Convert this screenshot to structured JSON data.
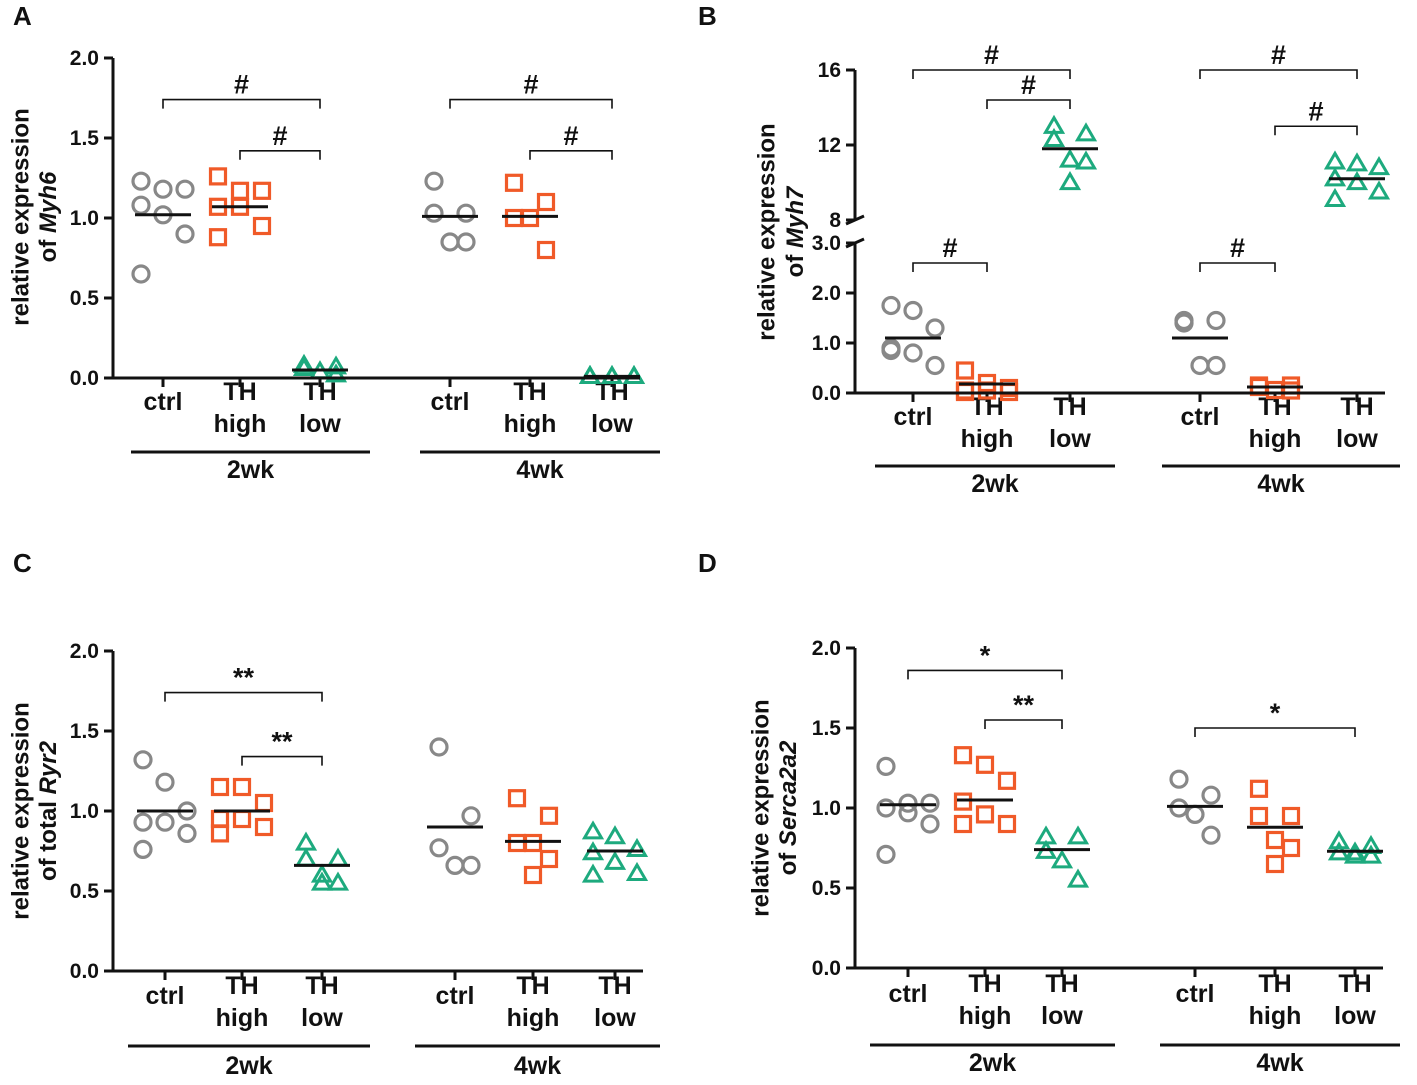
{
  "colors": {
    "ctrl": "#888888",
    "TH high": "#f05a28",
    "TH low": "#1daa7e",
    "axis": "#111111"
  },
  "chart_data": [
    {
      "panel": "A",
      "type": "scatter",
      "ylabel_line1": "relative expression",
      "ylabel_line2_prefix": "of ",
      "ylabel_gene": "Myh6",
      "ylim": [
        0,
        2.0
      ],
      "yticks": [
        0.0,
        0.5,
        1.0,
        1.5,
        2.0
      ],
      "ytick_labels": [
        "0.0",
        "0.5",
        "1.0",
        "1.5",
        "2.0"
      ],
      "groups": [
        {
          "label": "2wk",
          "series": [
            {
              "name": "ctrl",
              "label_lines": [
                "ctrl"
              ],
              "marker": "circle",
              "mean": 1.02,
              "values": [
                1.23,
                1.18,
                1.18,
                1.08,
                1.02,
                0.9,
                0.65
              ]
            },
            {
              "name": "TH high",
              "label_lines": [
                "TH",
                "high"
              ],
              "marker": "square",
              "mean": 1.07,
              "values": [
                1.26,
                1.17,
                1.17,
                1.07,
                1.07,
                0.95,
                0.88
              ]
            },
            {
              "name": "TH low",
              "label_lines": [
                "TH",
                "low"
              ],
              "marker": "triangle",
              "mean": 0.05,
              "values": [
                0.08,
                0.07,
                0.06,
                0.04,
                0.02
              ]
            }
          ]
        },
        {
          "label": "4wk",
          "series": [
            {
              "name": "ctrl",
              "label_lines": [
                "ctrl"
              ],
              "marker": "circle",
              "mean": 1.01,
              "values": [
                1.23,
                1.03,
                1.03,
                0.85,
                0.85
              ]
            },
            {
              "name": "TH high",
              "label_lines": [
                "TH",
                "high"
              ],
              "marker": "square",
              "mean": 1.01,
              "values": [
                1.22,
                1.1,
                1.0,
                1.0,
                0.8
              ]
            },
            {
              "name": "TH low",
              "label_lines": [
                "TH",
                "low"
              ],
              "marker": "triangle",
              "mean": 0.01,
              "values": [
                0.01,
                0.01,
                0.01,
                0.01,
                0.01,
                0.01,
                0.01
              ]
            }
          ]
        }
      ],
      "annotations": [
        {
          "group": 0,
          "from": 0,
          "to": 2,
          "y": 1.74,
          "label": "#"
        },
        {
          "group": 0,
          "from": 1,
          "to": 2,
          "y": 1.42,
          "label": "#"
        },
        {
          "group": 1,
          "from": 0,
          "to": 2,
          "y": 1.74,
          "label": "#"
        },
        {
          "group": 1,
          "from": 1,
          "to": 2,
          "y": 1.42,
          "label": "#"
        }
      ]
    },
    {
      "panel": "B",
      "type": "scatter",
      "ylabel_line1": "relative expression",
      "ylabel_line2_prefix": "of ",
      "ylabel_gene": "Myh7",
      "broken_axis": true,
      "ylim_lower": [
        0,
        3.0
      ],
      "ylim_upper": [
        8,
        16
      ],
      "yticks_lower": [
        0.0,
        1.0,
        2.0,
        3.0
      ],
      "ytick_labels_lower": [
        "0.0",
        "1.0",
        "2.0",
        "3.0"
      ],
      "yticks_upper": [
        8,
        12,
        16
      ],
      "ytick_labels_upper": [
        "8",
        "12",
        "16"
      ],
      "groups": [
        {
          "label": "2wk",
          "series": [
            {
              "name": "ctrl",
              "label_lines": [
                "ctrl"
              ],
              "marker": "circle",
              "mean": 1.1,
              "values": [
                1.75,
                1.65,
                1.3,
                0.85,
                0.8,
                0.55,
                0.9
              ]
            },
            {
              "name": "TH high",
              "label_lines": [
                "TH",
                "high"
              ],
              "marker": "square",
              "mean": 0.18,
              "values": [
                0.45,
                0.2,
                0.1,
                0.05,
                0.05,
                0.02,
                0.02
              ]
            },
            {
              "name": "TH low",
              "label_lines": [
                "TH",
                "low"
              ],
              "marker": "triangle",
              "mean": 11.8,
              "values": [
                13.0,
                12.6,
                12.3,
                11.2,
                11.1,
                10.0
              ]
            }
          ]
        },
        {
          "label": "4wk",
          "series": [
            {
              "name": "ctrl",
              "label_lines": [
                "ctrl"
              ],
              "marker": "circle",
              "mean": 1.1,
              "values": [
                1.45,
                1.45,
                1.4,
                0.55,
                0.55
              ]
            },
            {
              "name": "TH high",
              "label_lines": [
                "TH",
                "high"
              ],
              "marker": "square",
              "mean": 0.12,
              "values": [
                0.15,
                0.15,
                0.12,
                0.06,
                0.05
              ]
            },
            {
              "name": "TH low",
              "label_lines": [
                "TH",
                "low"
              ],
              "marker": "triangle",
              "mean": 10.2,
              "values": [
                11.1,
                11.0,
                10.8,
                10.2,
                10.0,
                9.5,
                9.1
              ]
            }
          ]
        }
      ],
      "annotations": [
        {
          "group": 0,
          "from": 0,
          "to": 2,
          "y": 16.0,
          "label": "#",
          "segment": "upper"
        },
        {
          "group": 0,
          "from": 1,
          "to": 2,
          "y": 14.4,
          "label": "#",
          "segment": "upper"
        },
        {
          "group": 0,
          "from": 0,
          "to": 1,
          "y": 2.6,
          "label": "#",
          "segment": "lower"
        },
        {
          "group": 1,
          "from": 0,
          "to": 2,
          "y": 16.0,
          "label": "#",
          "segment": "upper"
        },
        {
          "group": 1,
          "from": 1,
          "to": 2,
          "y": 13.0,
          "label": "#",
          "segment": "upper"
        },
        {
          "group": 1,
          "from": 0,
          "to": 1,
          "y": 2.6,
          "label": "#",
          "segment": "lower"
        }
      ]
    },
    {
      "panel": "C",
      "type": "scatter",
      "ylabel_line1": "relative expression",
      "ylabel_line2_prefix": "of total ",
      "ylabel_gene": "Ryr2",
      "ylim": [
        0,
        2.0
      ],
      "yticks": [
        0.0,
        0.5,
        1.0,
        1.5,
        2.0
      ],
      "ytick_labels": [
        "0.0",
        "0.5",
        "1.0",
        "1.5",
        "2.0"
      ],
      "groups": [
        {
          "label": "2wk",
          "series": [
            {
              "name": "ctrl",
              "label_lines": [
                "ctrl"
              ],
              "marker": "circle",
              "mean": 1.0,
              "values": [
                1.32,
                1.18,
                1.0,
                0.93,
                0.93,
                0.86,
                0.76
              ]
            },
            {
              "name": "TH high",
              "label_lines": [
                "TH",
                "high"
              ],
              "marker": "square",
              "mean": 1.0,
              "values": [
                1.15,
                1.15,
                1.05,
                0.95,
                0.95,
                0.9,
                0.86
              ]
            },
            {
              "name": "TH low",
              "label_lines": [
                "TH",
                "low"
              ],
              "marker": "triangle",
              "mean": 0.66,
              "values": [
                0.8,
                0.7,
                0.7,
                0.6,
                0.55,
                0.55
              ]
            }
          ]
        },
        {
          "label": "4wk",
          "series": [
            {
              "name": "ctrl",
              "label_lines": [
                "ctrl"
              ],
              "marker": "circle",
              "mean": 0.9,
              "values": [
                1.4,
                0.97,
                0.77,
                0.66,
                0.66
              ]
            },
            {
              "name": "TH high",
              "label_lines": [
                "TH",
                "high"
              ],
              "marker": "square",
              "mean": 0.81,
              "values": [
                1.08,
                0.97,
                0.8,
                0.8,
                0.7,
                0.6
              ]
            },
            {
              "name": "TH low",
              "label_lines": [
                "TH",
                "low"
              ],
              "marker": "triangle",
              "mean": 0.75,
              "values": [
                0.87,
                0.84,
                0.76,
                0.74,
                0.68,
                0.61,
                0.6
              ]
            }
          ]
        }
      ],
      "annotations": [
        {
          "group": 0,
          "from": 0,
          "to": 2,
          "y": 1.74,
          "label": "**"
        },
        {
          "group": 0,
          "from": 1,
          "to": 2,
          "y": 1.34,
          "label": "**"
        }
      ]
    },
    {
      "panel": "D",
      "type": "scatter",
      "ylabel_line1": "relative expression",
      "ylabel_line2_prefix": "of ",
      "ylabel_gene": "Serca2a2",
      "ylim": [
        0,
        2.0
      ],
      "yticks": [
        0.0,
        0.5,
        1.0,
        1.5,
        2.0
      ],
      "ytick_labels": [
        "0.0",
        "0.5",
        "1.0",
        "1.5",
        "2.0"
      ],
      "groups": [
        {
          "label": "2wk",
          "series": [
            {
              "name": "ctrl",
              "label_lines": [
                "ctrl"
              ],
              "marker": "circle",
              "mean": 1.02,
              "values": [
                1.26,
                1.03,
                1.03,
                1.0,
                0.97,
                0.9,
                0.71
              ]
            },
            {
              "name": "TH high",
              "label_lines": [
                "TH",
                "high"
              ],
              "marker": "square",
              "mean": 1.05,
              "values": [
                1.33,
                1.27,
                1.17,
                1.04,
                0.96,
                0.9,
                0.9
              ]
            },
            {
              "name": "TH low",
              "label_lines": [
                "TH",
                "low"
              ],
              "marker": "triangle",
              "mean": 0.74,
              "values": [
                0.82,
                0.82,
                0.73,
                0.67,
                0.55
              ]
            }
          ]
        },
        {
          "label": "4wk",
          "series": [
            {
              "name": "ctrl",
              "label_lines": [
                "ctrl"
              ],
              "marker": "circle",
              "mean": 1.01,
              "values": [
                1.18,
                1.08,
                1.0,
                0.96,
                0.83
              ]
            },
            {
              "name": "TH high",
              "label_lines": [
                "TH",
                "high"
              ],
              "marker": "square",
              "mean": 0.88,
              "values": [
                1.12,
                0.95,
                0.95,
                0.8,
                0.75,
                0.65
              ]
            },
            {
              "name": "TH low",
              "label_lines": [
                "TH",
                "low"
              ],
              "marker": "triangle",
              "mean": 0.73,
              "values": [
                0.79,
                0.76,
                0.72,
                0.72,
                0.7,
                0.7
              ]
            }
          ]
        }
      ],
      "annotations": [
        {
          "group": 0,
          "from": 0,
          "to": 2,
          "y": 1.86,
          "label": "*"
        },
        {
          "group": 0,
          "from": 1,
          "to": 2,
          "y": 1.55,
          "label": "**"
        },
        {
          "group": 1,
          "from": 0,
          "to": 2,
          "y": 1.5,
          "label": "*"
        }
      ]
    }
  ]
}
